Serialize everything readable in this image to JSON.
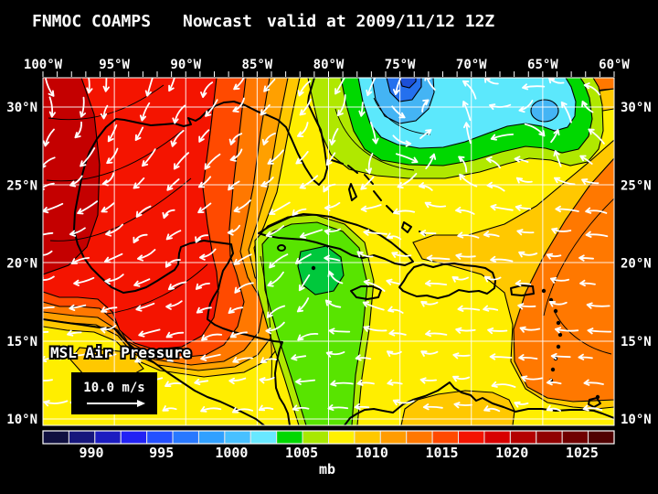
{
  "title": {
    "model": "FNMOC COAMPS",
    "product": "Nowcast",
    "valid": "valid at 2009/11/12 12Z"
  },
  "axes": {
    "lon_labels": [
      "100°W",
      "95°W",
      "90°W",
      "85°W",
      "80°W",
      "75°W",
      "70°W",
      "65°W",
      "60°W"
    ],
    "lat_labels": [
      "30°N",
      "25°N",
      "20°N",
      "15°N",
      "10°N"
    ]
  },
  "map": {
    "field_label": "MSL Air Pressure",
    "wind_reference": "10.0 m/s"
  },
  "colorbar": {
    "unit": "mb",
    "tick_labels": [
      "990",
      "995",
      "1000",
      "1005",
      "1010",
      "1015",
      "1020",
      "1025"
    ],
    "tick_values": [
      990,
      995,
      1000,
      1005,
      1010,
      1015,
      1020,
      1025
    ],
    "segment_colors": [
      "#101040",
      "#16167c",
      "#1c1cc0",
      "#2222f4",
      "#2450ff",
      "#2878ff",
      "#30a0ff",
      "#48c0ff",
      "#68e8ff",
      "#00d800",
      "#a8e800",
      "#fff000",
      "#ffc800",
      "#ff9c00",
      "#ff7800",
      "#ff4a00",
      "#f41400",
      "#d80000",
      "#b40000",
      "#900000",
      "#700000",
      "#500000"
    ]
  },
  "colors": {
    "background": "#000000",
    "text": "#ffffff",
    "grid": "#ffffff",
    "coast": "#000000",
    "wind_arrows": "#ffffff",
    "field": {
      "yellow": "#ffee00",
      "gold": "#ffc800",
      "amber": "#ffa000",
      "orange": "#ff7800",
      "orange_red": "#ff4a00",
      "red": "#f41400",
      "dark_red": "#c40000",
      "yellow_green": "#b0e800",
      "green": "#00d800",
      "blob_green": "#58e400",
      "core_green": "#00c83c",
      "cyan": "#5ce8fc",
      "light_blue": "#44b4f4",
      "blue": "#2470ee",
      "dark_blue": "#1c50d8"
    }
  },
  "chart_data": {
    "type": "filled_contour_map",
    "title": "FNMOC COAMPS Nowcast valid at 2009/11/12 12Z",
    "field": "MSL Air Pressure",
    "unit": "mb",
    "region": "Gulf of Mexico and Caribbean Sea",
    "extent": {
      "west_lon": "100°W",
      "east_lon": "60°W",
      "south_lat": "10°N",
      "north_lat": "32°N"
    },
    "colorbar_range_mb": [
      986,
      1030
    ],
    "colorbar_step_mb": 2,
    "pressure_features": [
      {
        "type": "high",
        "location": "western Gulf of Mexico / northeast Mexico",
        "approx_center": "97°W 24°N",
        "approx_value_mb": 1022
      },
      {
        "type": "low",
        "location": "western Atlantic north of the Bahamas",
        "approx_center": "78°W 32°N",
        "approx_value_mb": 994
      },
      {
        "type": "low",
        "location": "central Atlantic northeast corner",
        "approx_center": "65°W 30°N",
        "approx_value_mb": 1000
      },
      {
        "type": "low",
        "location": "northwest Caribbean south of Cuba",
        "approx_center": "80°W 19.5°N",
        "approx_value_mb": 1004
      }
    ],
    "wind_field": "white wind vectors, 10.0 m/s reference; easterly trade winds across the Caribbean, north-to-southwest flow over the Gulf of Mexico around the high, cyclonic circulation around the Atlantic lows",
    "grid_lines": {
      "lon_interval_deg": 5,
      "lat_interval_deg": 5
    }
  }
}
